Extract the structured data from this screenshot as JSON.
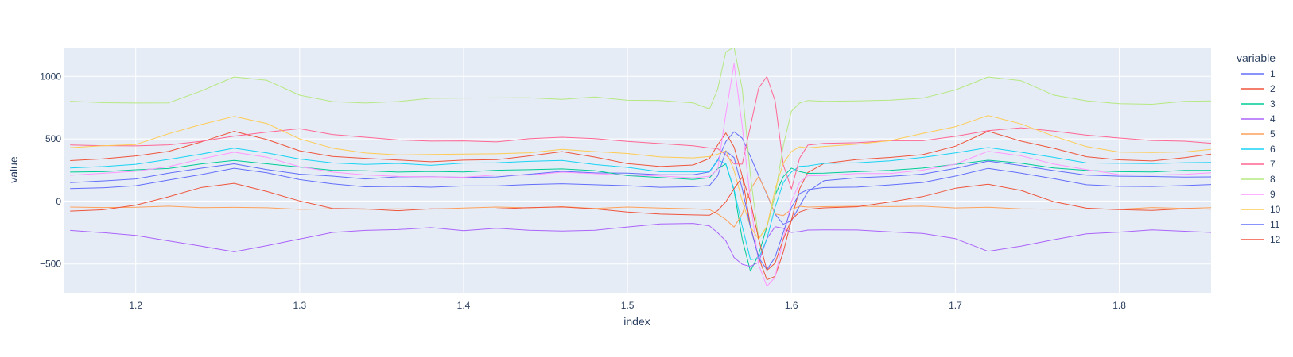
{
  "chart_data": {
    "type": "line",
    "title": "",
    "xlabel": "index",
    "ylabel": "value",
    "xlim": [
      1.156,
      1.856
    ],
    "ylim": [
      -730,
      1230
    ],
    "xticks": [
      1.2,
      1.3,
      1.4,
      1.5,
      1.6,
      1.7,
      1.8
    ],
    "xtick_labels": [
      "1.2",
      "1.3",
      "1.4",
      "1.5",
      "1.6",
      "1.7",
      "1.8"
    ],
    "yticks": [
      -500,
      0,
      500,
      1000
    ],
    "ytick_labels": [
      "−500",
      "0",
      "500",
      "1000"
    ],
    "grid": true,
    "legend_title": "variable",
    "legend_placement": "right",
    "x": [
      1.16,
      1.18,
      1.2,
      1.22,
      1.24,
      1.26,
      1.28,
      1.3,
      1.32,
      1.34,
      1.36,
      1.38,
      1.4,
      1.42,
      1.44,
      1.46,
      1.48,
      1.5,
      1.52,
      1.54,
      1.55,
      1.555,
      1.56,
      1.565,
      1.57,
      1.575,
      1.58,
      1.585,
      1.59,
      1.595,
      1.6,
      1.605,
      1.61,
      1.62,
      1.64,
      1.66,
      1.68,
      1.7,
      1.72,
      1.74,
      1.76,
      1.78,
      1.8,
      1.82,
      1.84,
      1.856
    ],
    "series": [
      {
        "name": "1",
        "color": "#636efa",
        "values": [
          150,
          160,
          180,
          220,
          270,
          300,
          260,
          220,
          200,
          180,
          190,
          200,
          190,
          200,
          220,
          240,
          230,
          220,
          215,
          210,
          240,
          330,
          480,
          560,
          500,
          360,
          200,
          60,
          -100,
          -180,
          -150,
          -40,
          80,
          160,
          190,
          200,
          220,
          270,
          320,
          290,
          240,
          210,
          200,
          200,
          200,
          195
        ]
      },
      {
        "name": "2",
        "color": "#EF553B",
        "values": [
          320,
          340,
          360,
          400,
          480,
          560,
          500,
          400,
          360,
          340,
          330,
          320,
          330,
          340,
          360,
          400,
          350,
          300,
          280,
          290,
          350,
          450,
          550,
          430,
          200,
          -200,
          -450,
          -620,
          -600,
          -400,
          -150,
          100,
          230,
          300,
          340,
          350,
          380,
          440,
          560,
          480,
          420,
          360,
          330,
          330,
          350,
          380
        ]
      },
      {
        "name": "3",
        "color": "#00cc96",
        "values": [
          230,
          240,
          250,
          270,
          300,
          330,
          300,
          270,
          250,
          240,
          240,
          240,
          240,
          250,
          250,
          260,
          240,
          210,
          190,
          180,
          190,
          260,
          300,
          80,
          -300,
          -560,
          -420,
          -200,
          50,
          200,
          260,
          240,
          220,
          230,
          240,
          250,
          270,
          290,
          330,
          300,
          270,
          250,
          240,
          240,
          245,
          250
        ]
      },
      {
        "name": "4",
        "color": "#ab63fa",
        "values": [
          -230,
          -250,
          -270,
          -310,
          -360,
          -400,
          -360,
          -300,
          -250,
          -230,
          -220,
          -210,
          -230,
          -220,
          -230,
          -240,
          -230,
          -200,
          -180,
          -170,
          -200,
          -250,
          -320,
          -450,
          -500,
          -520,
          -480,
          -300,
          -200,
          -220,
          -250,
          -240,
          -230,
          -220,
          -230,
          -240,
          -260,
          -300,
          -400,
          -360,
          -300,
          -260,
          -240,
          -230,
          -240,
          -250
        ]
      },
      {
        "name": "5",
        "color": "#FFA15A",
        "values": [
          -40,
          -50,
          -40,
          -40,
          -50,
          -50,
          -55,
          -60,
          -60,
          -55,
          -60,
          -60,
          -55,
          -50,
          -50,
          -45,
          -50,
          -45,
          -50,
          -60,
          -70,
          -100,
          -150,
          -200,
          -100,
          100,
          200,
          60,
          -100,
          -120,
          -60,
          -40,
          -40,
          -40,
          -40,
          -40,
          -45,
          -50,
          -50,
          -55,
          -60,
          -60,
          -60,
          -55,
          -55,
          -55
        ]
      },
      {
        "name": "6",
        "color": "#19d3f3",
        "values": [
          270,
          280,
          300,
          330,
          380,
          420,
          390,
          340,
          310,
          300,
          300,
          290,
          300,
          310,
          320,
          330,
          300,
          270,
          240,
          230,
          240,
          330,
          300,
          100,
          -200,
          -460,
          -460,
          -300,
          -50,
          150,
          240,
          280,
          290,
          300,
          310,
          320,
          350,
          390,
          430,
          400,
          350,
          310,
          300,
          300,
          310,
          310
        ]
      },
      {
        "name": "7",
        "color": "#FF6692",
        "values": [
          450,
          450,
          440,
          450,
          480,
          520,
          560,
          580,
          540,
          510,
          490,
          480,
          480,
          480,
          500,
          520,
          500,
          480,
          460,
          440,
          430,
          420,
          380,
          300,
          300,
          600,
          900,
          1000,
          800,
          300,
          100,
          350,
          450,
          460,
          470,
          480,
          490,
          520,
          570,
          590,
          560,
          530,
          500,
          490,
          480,
          470
        ]
      },
      {
        "name": "8",
        "color": "#B6E880",
        "values": [
          800,
          790,
          780,
          790,
          880,
          1000,
          970,
          850,
          800,
          780,
          800,
          820,
          830,
          830,
          830,
          820,
          830,
          810,
          800,
          790,
          740,
          900,
          1200,
          1230,
          900,
          200,
          -300,
          -200,
          50,
          450,
          720,
          790,
          800,
          800,
          800,
          810,
          830,
          890,
          1000,
          960,
          850,
          800,
          780,
          780,
          800,
          810
        ]
      },
      {
        "name": "9",
        "color": "#FF97FF",
        "values": [
          210,
          220,
          240,
          280,
          340,
          400,
          350,
          280,
          230,
          210,
          200,
          195,
          200,
          210,
          215,
          230,
          220,
          210,
          200,
          195,
          200,
          260,
          700,
          1100,
          600,
          0,
          -500,
          -680,
          -600,
          -300,
          0,
          150,
          200,
          210,
          220,
          230,
          250,
          300,
          400,
          360,
          300,
          250,
          220,
          210,
          220,
          230
        ]
      },
      {
        "name": "10",
        "color": "#FECB52",
        "values": [
          430,
          440,
          460,
          540,
          620,
          680,
          620,
          500,
          420,
          390,
          370,
          380,
          380,
          380,
          390,
          410,
          400,
          380,
          360,
          350,
          360,
          380,
          400,
          250,
          0,
          -200,
          -300,
          -200,
          100,
          300,
          400,
          430,
          430,
          440,
          460,
          490,
          540,
          600,
          680,
          620,
          520,
          440,
          400,
          390,
          400,
          410
        ]
      },
      {
        "name": "11",
        "color": "#636efa",
        "values": [
          100,
          110,
          130,
          170,
          220,
          260,
          230,
          170,
          140,
          120,
          120,
          120,
          120,
          125,
          130,
          140,
          135,
          125,
          120,
          115,
          130,
          200,
          400,
          350,
          100,
          -200,
          -450,
          -540,
          -450,
          -250,
          -50,
          60,
          100,
          110,
          120,
          130,
          150,
          200,
          260,
          230,
          180,
          140,
          120,
          120,
          125,
          130
        ]
      },
      {
        "name": "12",
        "color": "#EF553B",
        "values": [
          -80,
          -60,
          -30,
          40,
          110,
          140,
          80,
          0,
          -50,
          -60,
          -70,
          -60,
          -65,
          -60,
          -55,
          -40,
          -60,
          -80,
          -100,
          -110,
          -110,
          -80,
          0,
          100,
          200,
          0,
          -300,
          -550,
          -500,
          -300,
          -150,
          -80,
          -60,
          -50,
          -40,
          -10,
          40,
          100,
          140,
          90,
          0,
          -50,
          -70,
          -70,
          -65,
          -60
        ]
      }
    ]
  }
}
